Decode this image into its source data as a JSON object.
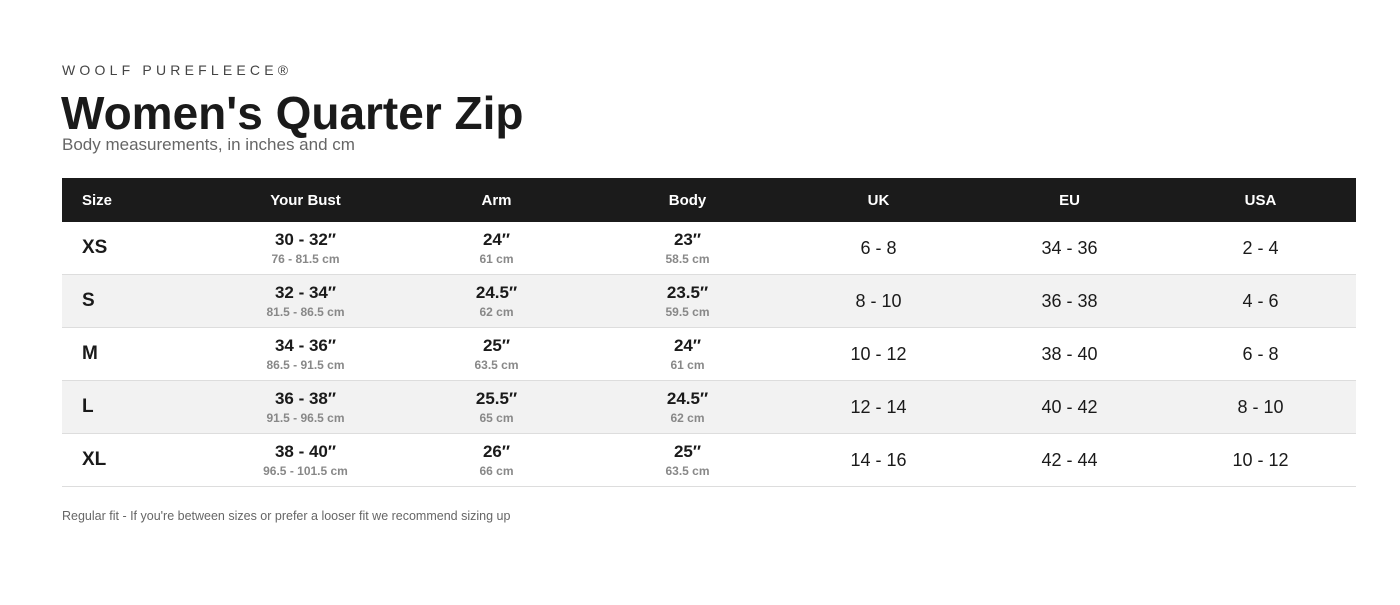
{
  "header": {
    "brand": "WOOLF PUREFLEECE®",
    "title": "Women's Quarter Zip",
    "subtitle": "Body measurements, in inches and cm"
  },
  "table": {
    "columns": [
      "Size",
      "Your Bust",
      "Arm",
      "Body",
      "UK",
      "EU",
      "USA"
    ],
    "rows": [
      [
        "XS",
        {
          "main": "30 - 32″",
          "sub": "76 - 81.5 cm"
        },
        {
          "main": "24″",
          "sub": "61 cm"
        },
        {
          "main": "23″",
          "sub": "58.5 cm"
        },
        "6 - 8",
        "34 - 36",
        "2 - 4"
      ],
      [
        "S",
        {
          "main": "32 - 34″",
          "sub": "81.5 - 86.5 cm"
        },
        {
          "main": "24.5″",
          "sub": "62 cm"
        },
        {
          "main": "23.5″",
          "sub": "59.5 cm"
        },
        "8 - 10",
        "36 - 38",
        "4 - 6"
      ],
      [
        "M",
        {
          "main": "34 - 36″",
          "sub": "86.5 - 91.5 cm"
        },
        {
          "main": "25″",
          "sub": "63.5 cm"
        },
        {
          "main": "24″",
          "sub": "61 cm"
        },
        "10 - 12",
        "38 - 40",
        "6 - 8"
      ],
      [
        "L",
        {
          "main": "36 - 38″",
          "sub": "91.5 - 96.5 cm"
        },
        {
          "main": "25.5″",
          "sub": "65 cm"
        },
        {
          "main": "24.5″",
          "sub": "62 cm"
        },
        "12 - 14",
        "40 - 42",
        "8 - 10"
      ],
      [
        "XL",
        {
          "main": "38 - 40″",
          "sub": "96.5 - 101.5 cm"
        },
        {
          "main": "26″",
          "sub": "66 cm"
        },
        {
          "main": "25″",
          "sub": "63.5 cm"
        },
        "14 - 16",
        "42 - 44",
        "10 - 12"
      ]
    ]
  },
  "footer": {
    "note": "Regular fit - If you're between sizes or prefer a looser fit we recommend sizing up"
  }
}
